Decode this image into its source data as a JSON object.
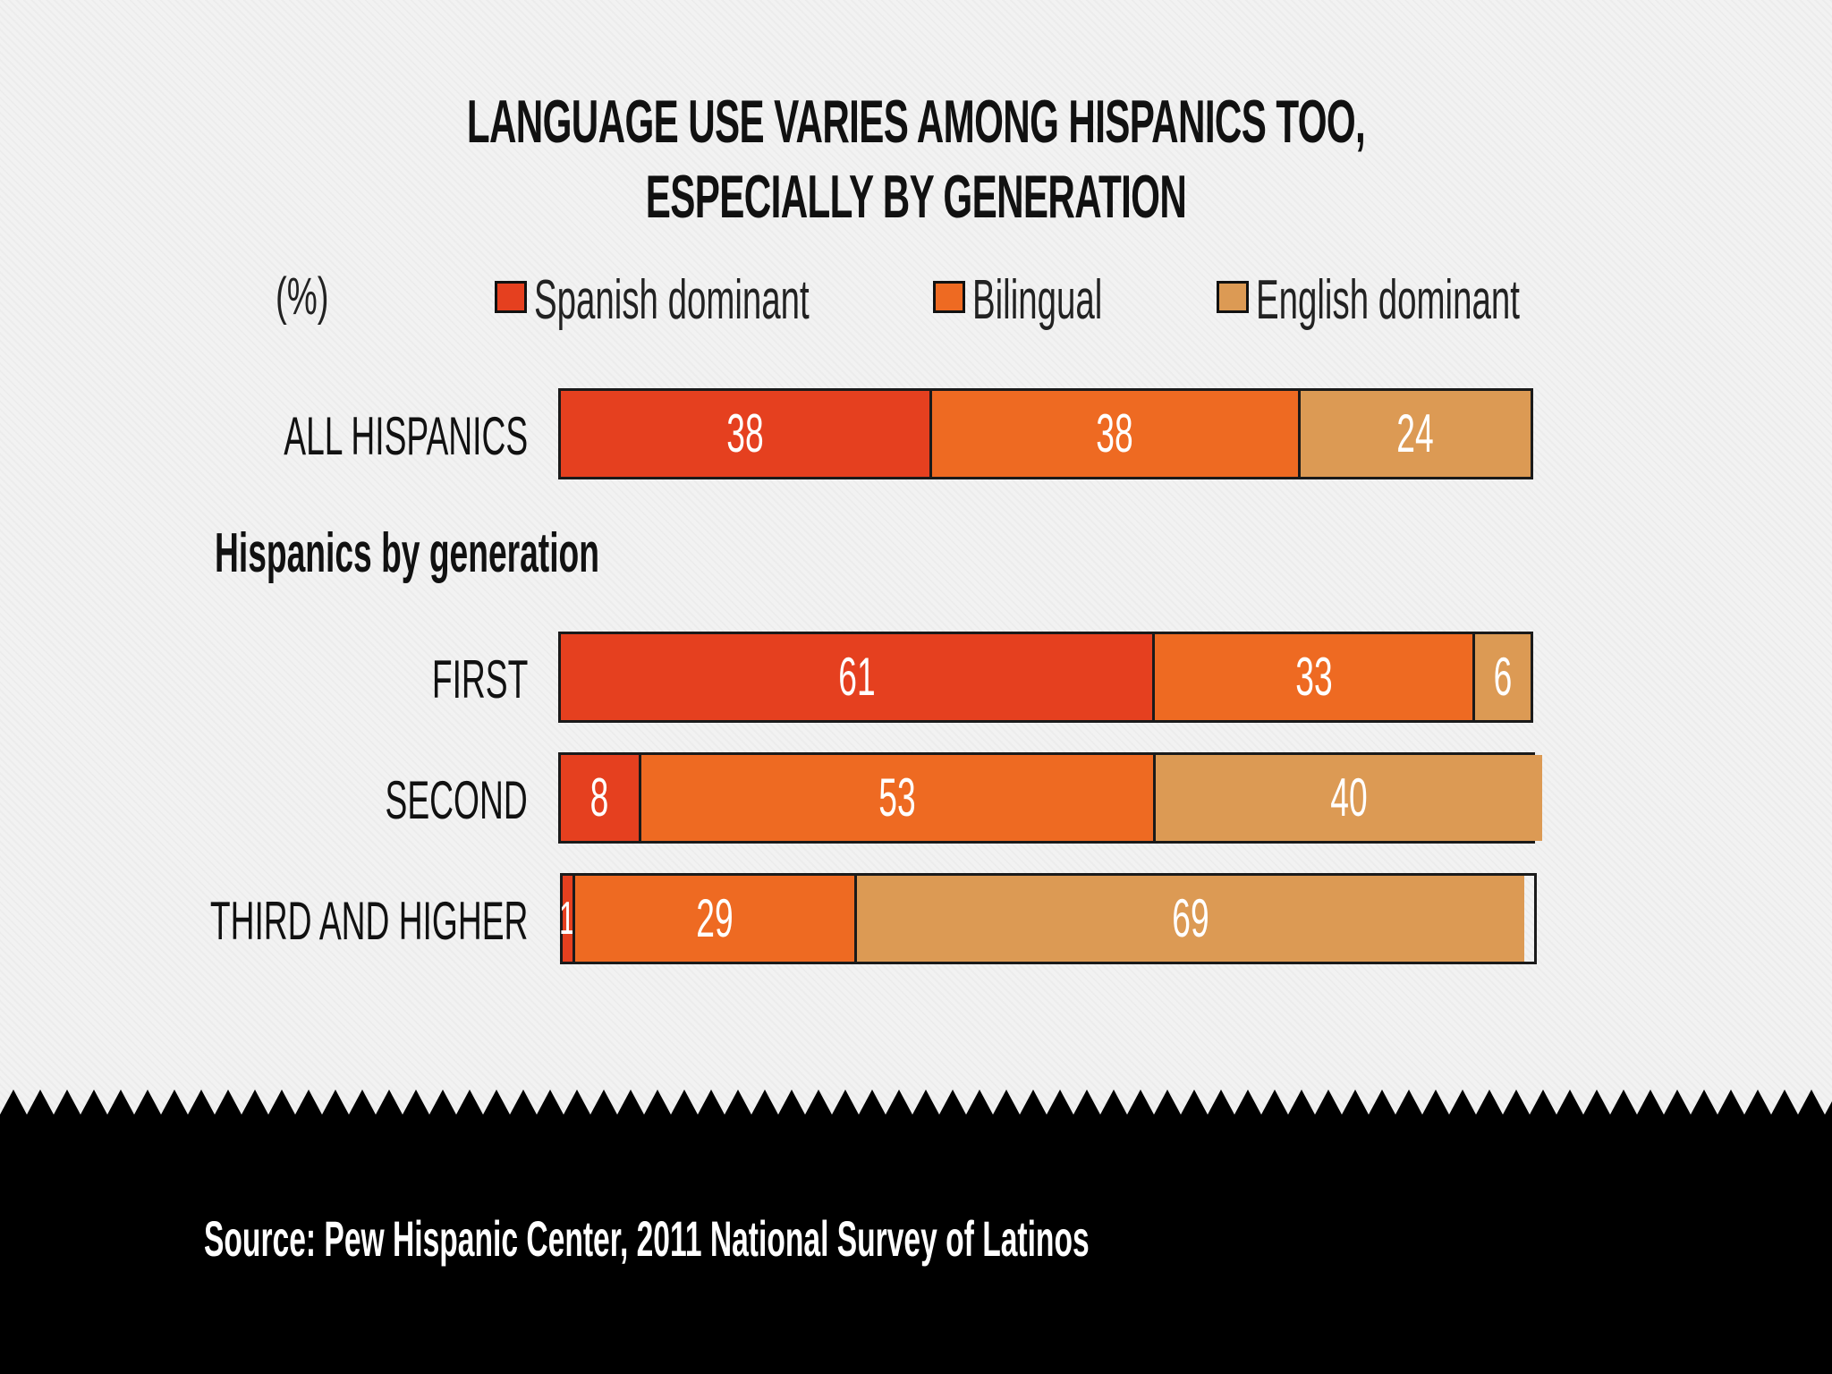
{
  "chart_data": {
    "type": "bar",
    "orientation": "horizontal",
    "stacked": true,
    "title_lines": [
      "LANGUAGE USE VARIES AMONG HISPANICS TOO,",
      "ESPECIALLY BY GENERATION"
    ],
    "unit_label": "(%)",
    "legend": [
      {
        "name": "Spanish dominant",
        "color": "#e5401f"
      },
      {
        "name": "Bilingual",
        "color": "#ee6a22"
      },
      {
        "name": "English dominant",
        "color": "#dc9a54"
      }
    ],
    "group_label": "Hispanics by generation",
    "categories": [
      "ALL HISPANICS",
      "FIRST",
      "SECOND",
      "THIRD AND HIGHER"
    ],
    "series": [
      {
        "name": "Spanish dominant",
        "values": [
          38,
          61,
          8,
          1
        ]
      },
      {
        "name": "Bilingual",
        "values": [
          38,
          33,
          53,
          29
        ]
      },
      {
        "name": "English dominant",
        "values": [
          24,
          6,
          40,
          69
        ]
      }
    ],
    "xlim": [
      0,
      100
    ],
    "grid": false,
    "legend_position": "top"
  },
  "source": "Source: Pew Hispanic Center, 2011 National Survey of Latinos",
  "colors": {
    "footer": "#000000",
    "text": "#111111"
  }
}
